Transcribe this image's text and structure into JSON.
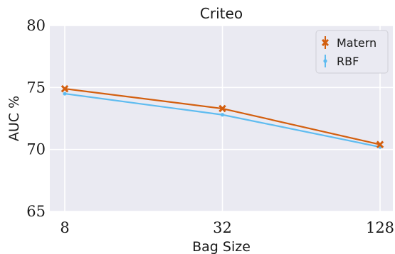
{
  "chart_data": {
    "type": "line",
    "title": "Criteo",
    "xlabel": "Bag Size",
    "ylabel": "AUC %",
    "x": [
      8,
      32,
      128
    ],
    "x_tick_labels": [
      "8",
      "32",
      "128"
    ],
    "x_scale": "log2",
    "ylim": [
      65,
      80
    ],
    "y_ticks": [
      65,
      70,
      75,
      80
    ],
    "grid": true,
    "legend_position": "top-right",
    "series": [
      {
        "name": "Matern",
        "values": [
          74.9,
          73.3,
          70.4
        ],
        "color": "#d35f0f",
        "marker": "x"
      },
      {
        "name": "RBF",
        "values": [
          74.5,
          72.8,
          70.2
        ],
        "color": "#5fbcf0",
        "marker": "dot"
      }
    ]
  }
}
